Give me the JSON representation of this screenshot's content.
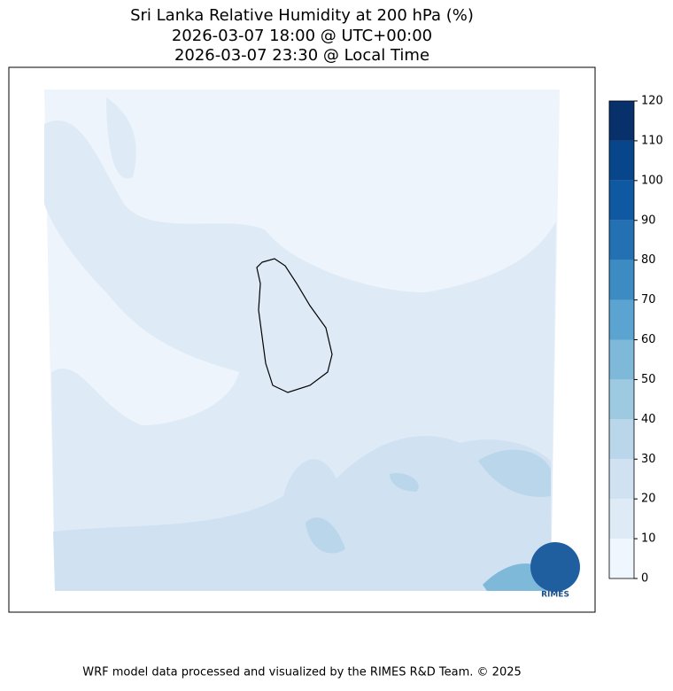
{
  "header": {
    "title_lines": [
      "Sri Lanka Relative Humidity at 200 hPa (%)",
      "2026-03-07 18:00 @ UTC+00:00",
      "2026-03-07 23:30 @ Local Time"
    ]
  },
  "colorbar": {
    "lim": [
      0,
      120
    ],
    "ticks": [
      0,
      10,
      20,
      30,
      40,
      50,
      60,
      70,
      80,
      90,
      100,
      110,
      120
    ],
    "colors": [
      "#f0f6fd",
      "#deebf7",
      "#d0e1f2",
      "#bad6eb",
      "#9ecae1",
      "#7fb9da",
      "#5ba3d0",
      "#3c8bc3",
      "#2371b3",
      "#0f58a2",
      "#08468b",
      "#08306b"
    ]
  },
  "logo": {
    "text": "RIMES"
  },
  "footer": {
    "text": "WRF model data processed and visualized by the RIMES R&D Team. © 2025"
  }
}
